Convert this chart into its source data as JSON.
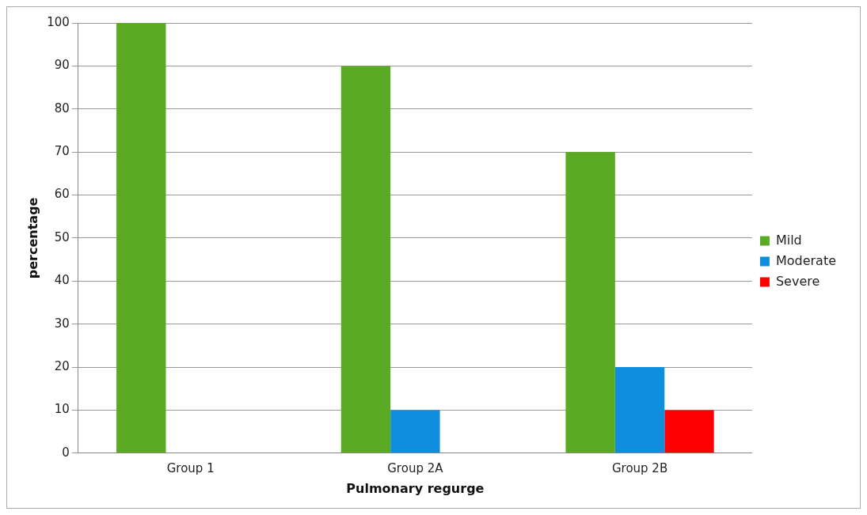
{
  "chart_data": {
    "type": "bar",
    "xlabel": "Pulmonary regurge",
    "ylabel": "percentage",
    "categories": [
      "Group 1",
      "Group 2A",
      "Group 2B"
    ],
    "series": [
      {
        "name": "Mild",
        "color": "#5aab23",
        "values": [
          100,
          90,
          70
        ]
      },
      {
        "name": "Moderate",
        "color": "#108ede",
        "values": [
          0,
          10,
          20
        ]
      },
      {
        "name": "Severe",
        "color": "#fe0000",
        "values": [
          0,
          0,
          10
        ]
      }
    ],
    "ylim": [
      0,
      100
    ],
    "yticks": [
      0,
      10,
      20,
      30,
      40,
      50,
      60,
      70,
      80,
      90,
      100
    ],
    "grid": "y",
    "legend": "right"
  }
}
